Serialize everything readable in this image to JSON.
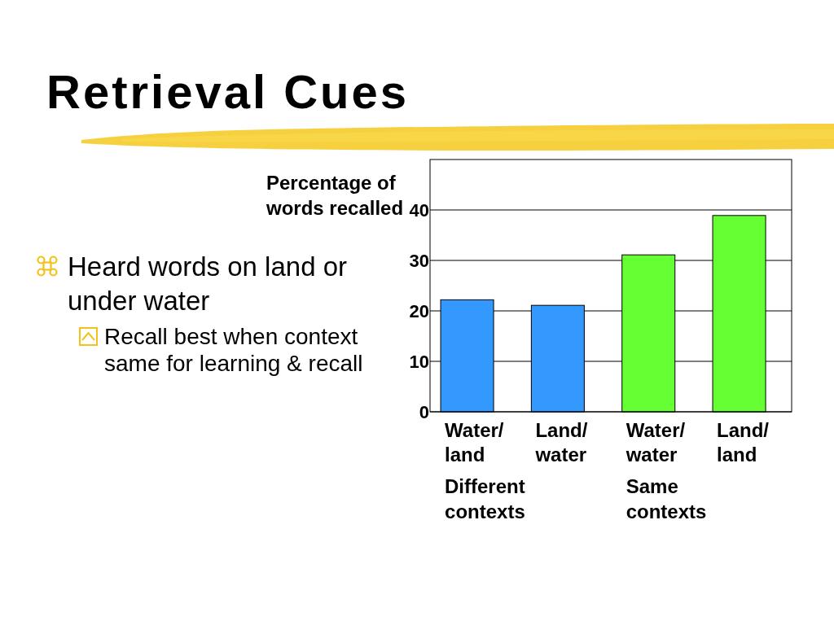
{
  "chart_data": {
    "type": "bar",
    "title": "Retrieval Cues",
    "ylabel": "Percentage of words recalled",
    "categories": [
      "Water/ land",
      "Land/ water",
      "Water/ water",
      "Land/ land"
    ],
    "values": [
      22.2,
      21.1,
      31.1,
      38.9
    ],
    "colors": [
      "#3399ff",
      "#3399ff",
      "#66ff33",
      "#66ff33"
    ],
    "ylim": [
      0,
      50
    ],
    "yticks": [
      0,
      10,
      20,
      30,
      40
    ],
    "grid": "y",
    "annotations": [
      "Heard words on land or under water",
      "Recall best when context same for learning & recall",
      "Different contexts",
      "Same contexts"
    ]
  }
}
